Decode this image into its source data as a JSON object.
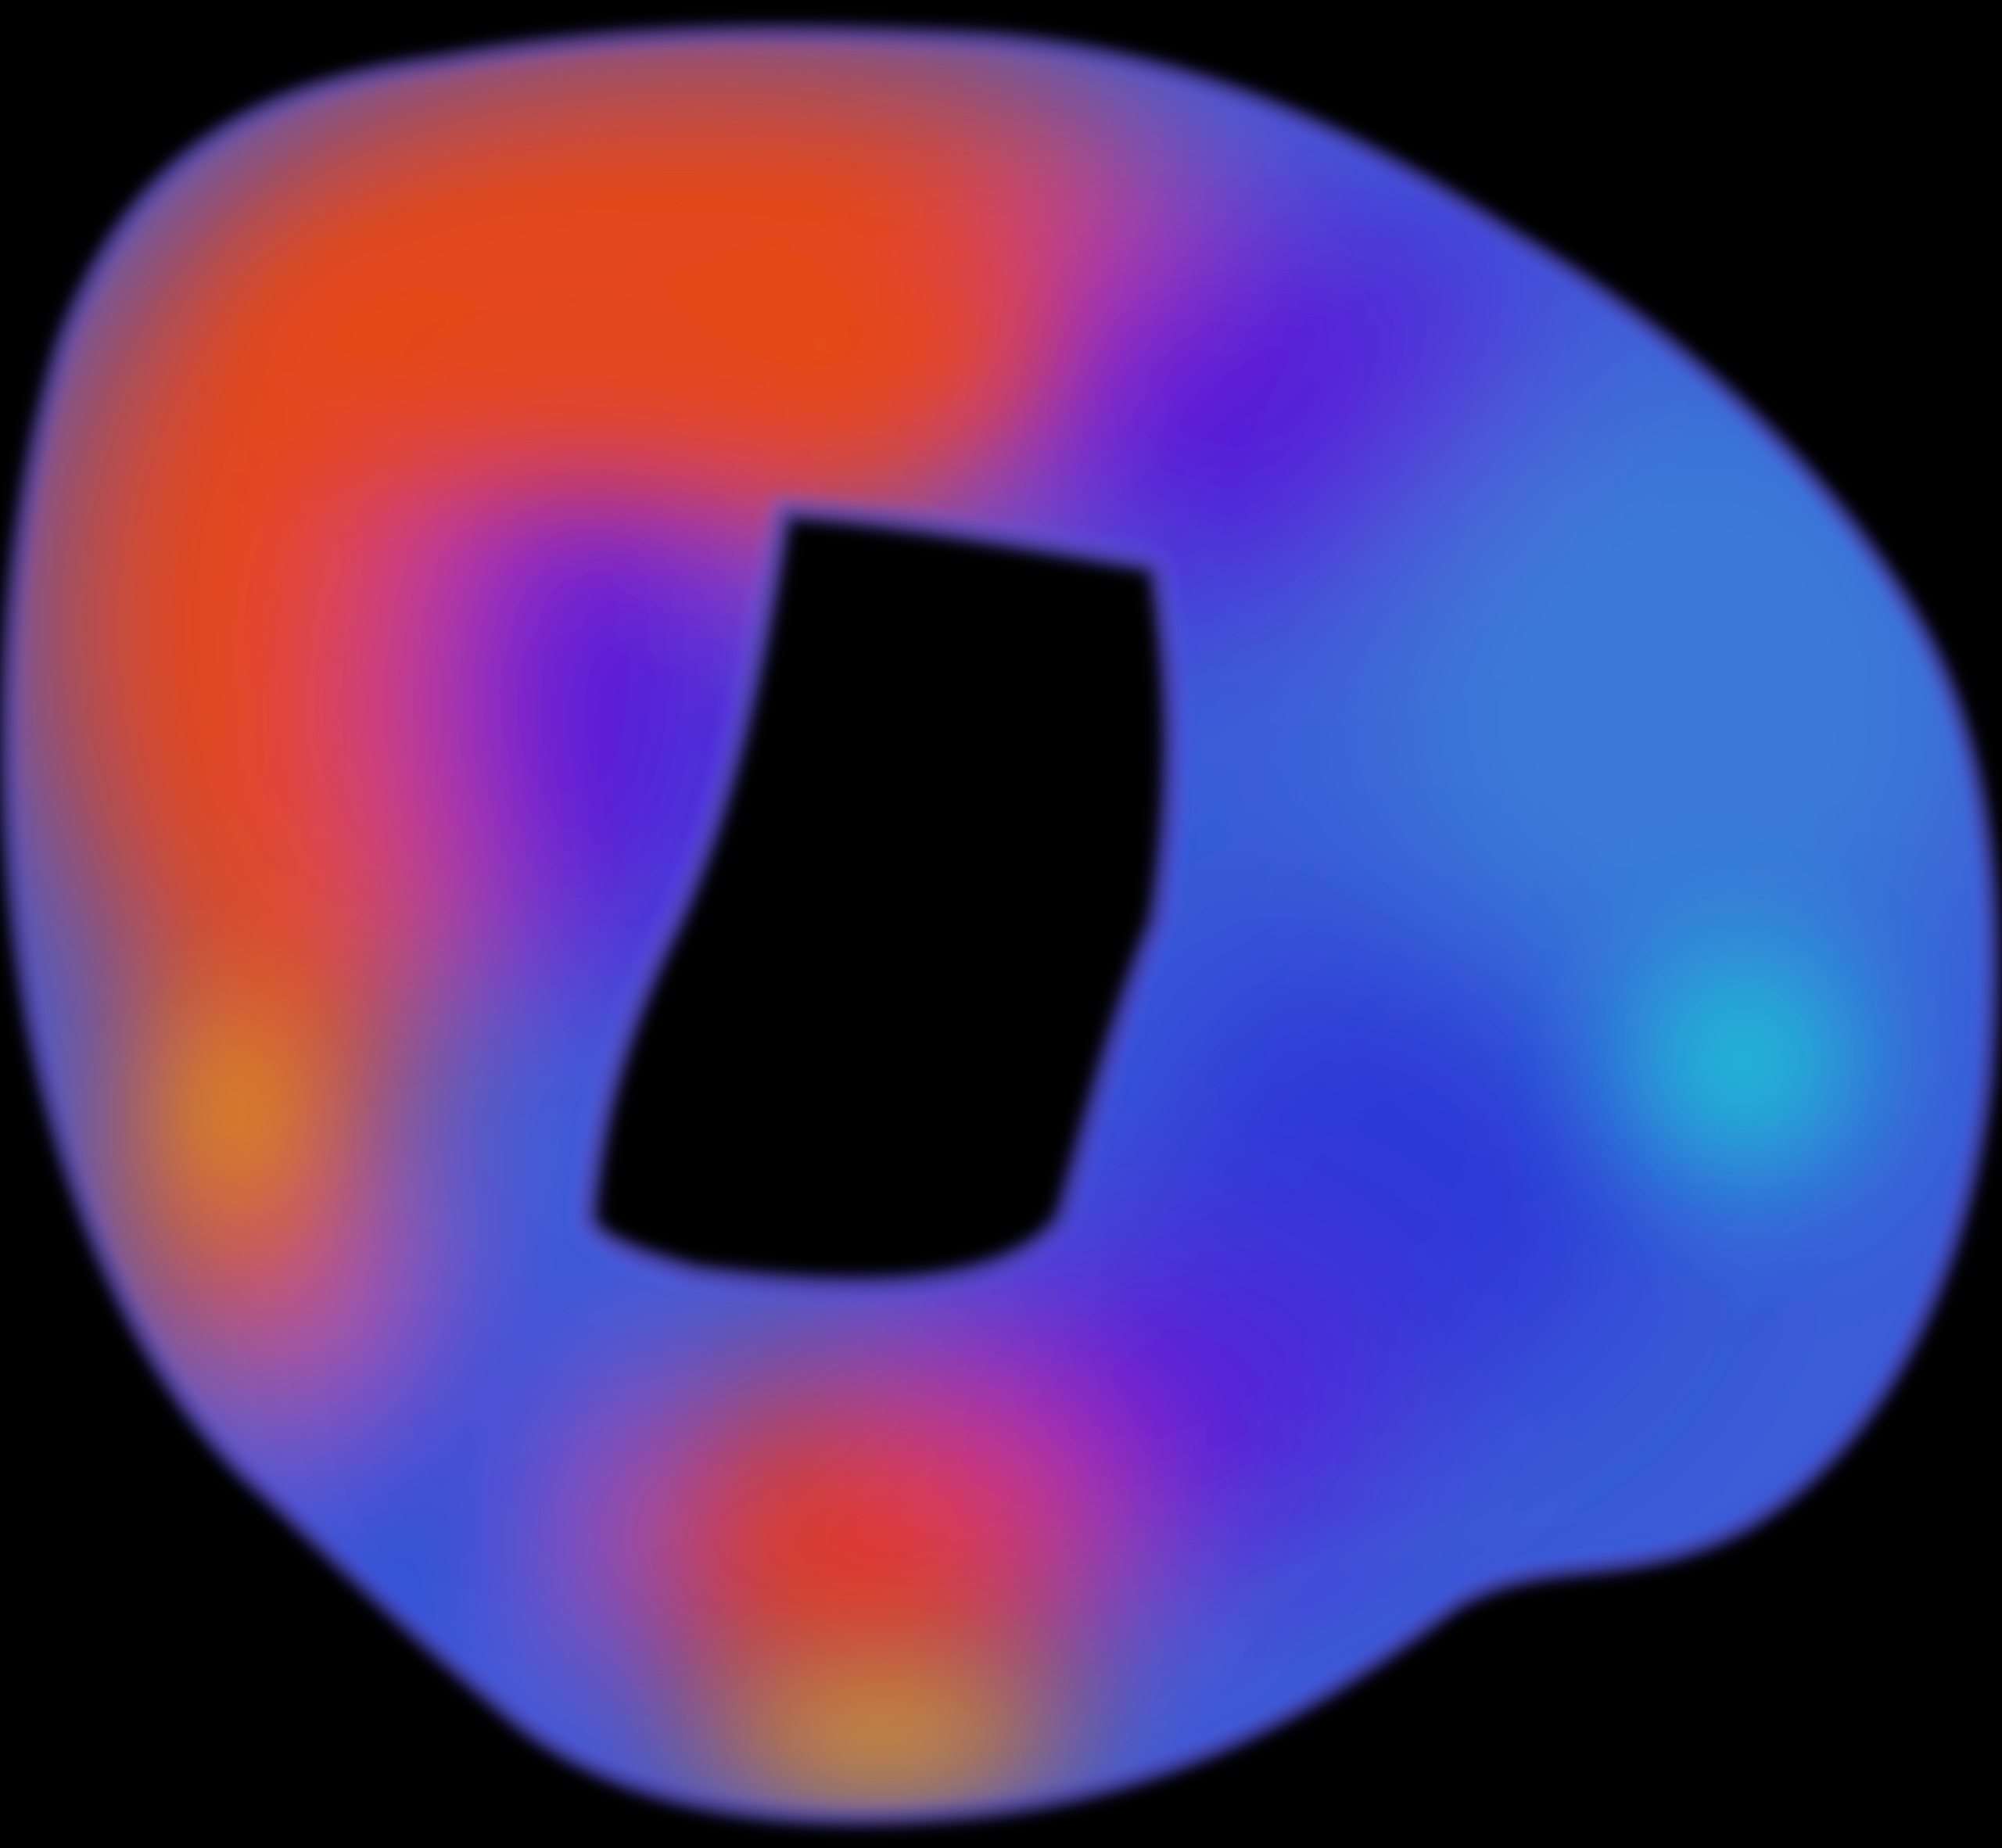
{
  "scene": {
    "subject": "gradient-torus-blob",
    "background_color": "#000000",
    "palette": {
      "orange": "#ff4a12",
      "red_orange": "#ff3a1a",
      "yellow": "#f5c21a",
      "violet": "#5a18f2",
      "indigo": "#3b2cf0",
      "blue": "#2a52f0",
      "sky_blue": "#3a86f0",
      "cyan": "#10f0ea",
      "rim_lavender": "#6a5cf2"
    }
  }
}
